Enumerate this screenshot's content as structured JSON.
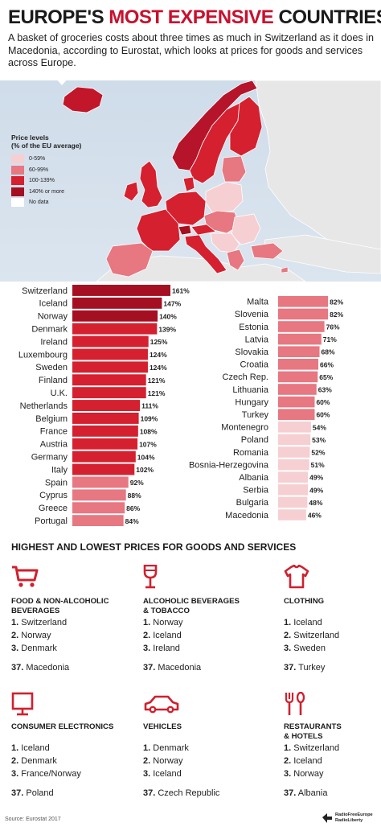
{
  "header": {
    "title_prefix": "EUROPE'S",
    "title_accent": "MOST EXPENSIVE",
    "title_suffix": "COUNTRIES",
    "subtitle": "A basket of groceries costs about three times as much in Switzerland as it does in Macedonia, according to Eurostat, which looks at prices for goods and services across Europe."
  },
  "legend": {
    "title_line1": "Price levels",
    "title_line2": "(% of the EU average)",
    "items": [
      {
        "label": "0-59%",
        "color": "#f6cfd2"
      },
      {
        "label": "60-99%",
        "color": "#e77781"
      },
      {
        "label": "100-139%",
        "color": "#d5202f"
      },
      {
        "label": "140% or more",
        "color": "#a50f22"
      },
      {
        "label": "No data",
        "color": "#ffffff"
      }
    ]
  },
  "chart_data": {
    "type": "bar",
    "orientation": "horizontal",
    "unit": "%",
    "series": [
      {
        "categories": [
          "Switzerland",
          "Iceland",
          "Norway",
          "Denmark",
          "Ireland",
          "Luxembourg",
          "Sweden",
          "Finland",
          "U.K.",
          "Netherlands",
          "Belgium",
          "France",
          "Austria",
          "Germany",
          "Italy",
          "Spain",
          "Cyprus",
          "Greece",
          "Portugal"
        ],
        "values": [
          161,
          147,
          140,
          139,
          125,
          124,
          124,
          121,
          121,
          111,
          109,
          108,
          107,
          104,
          102,
          92,
          88,
          86,
          84
        ]
      },
      {
        "categories": [
          "Malta",
          "Slovenia",
          "Estonia",
          "Latvia",
          "Slovakia",
          "Croatia",
          "Czech Rep.",
          "Lithuania",
          "Hungary",
          "Turkey",
          "Montenegro",
          "Poland",
          "Romania",
          "Bosnia-Herzegovina",
          "Albania",
          "Serbia",
          "Bulgaria",
          "Macedonia"
        ],
        "values": [
          82,
          82,
          76,
          71,
          68,
          66,
          65,
          63,
          60,
          60,
          54,
          53,
          52,
          51,
          49,
          49,
          48,
          46
        ]
      }
    ]
  },
  "section_title": "HIGHEST AND LOWEST PRICES FOR GOODS AND SERVICES",
  "categories": [
    {
      "icon": "shopping-cart-icon",
      "title_line1": "FOOD & NON-ALCOHOLIC",
      "title_line2": "BEVERAGES",
      "ranks": [
        {
          "n": "1.",
          "c": "Switzerland"
        },
        {
          "n": "2.",
          "c": "Norway"
        },
        {
          "n": "3.",
          "c": "Denmark"
        }
      ],
      "last": {
        "n": "37.",
        "c": "Macedonia"
      }
    },
    {
      "icon": "wine-glass-icon",
      "title_line1": "ALCOHOLIC BEVERAGES",
      "title_line2": "& TOBACCO",
      "ranks": [
        {
          "n": "1.",
          "c": "Norway"
        },
        {
          "n": "2.",
          "c": "Iceland"
        },
        {
          "n": "3.",
          "c": "Ireland"
        }
      ],
      "last": {
        "n": "37.",
        "c": "Macedonia"
      }
    },
    {
      "icon": "shirt-icon",
      "title_line1": "CLOTHING",
      "title_line2": "",
      "ranks": [
        {
          "n": "1.",
          "c": "Iceland"
        },
        {
          "n": "2.",
          "c": "Switzerland"
        },
        {
          "n": "3.",
          "c": "Sweden"
        }
      ],
      "last": {
        "n": "37.",
        "c": "Turkey"
      }
    },
    {
      "icon": "monitor-icon",
      "title_line1": "CONSUMER ELECTRONICS",
      "title_line2": "",
      "ranks": [
        {
          "n": "1.",
          "c": "Iceland"
        },
        {
          "n": "2.",
          "c": "Denmark"
        },
        {
          "n": "3.",
          "c": "France/Norway"
        }
      ],
      "last": {
        "n": "37.",
        "c": "Poland"
      }
    },
    {
      "icon": "car-icon",
      "title_line1": "VEHICLES",
      "title_line2": "",
      "ranks": [
        {
          "n": "1.",
          "c": "Denmark"
        },
        {
          "n": "2.",
          "c": "Norway"
        },
        {
          "n": "3.",
          "c": "Iceland"
        }
      ],
      "last": {
        "n": "37.",
        "c": "Czech Republic"
      }
    },
    {
      "icon": "fork-spoon-icon",
      "title_line1": "RESTAURANTS",
      "title_line2": "& HOTELS",
      "ranks": [
        {
          "n": "1.",
          "c": "Switzerland"
        },
        {
          "n": "2.",
          "c": "Iceland"
        },
        {
          "n": "3.",
          "c": "Norway"
        }
      ],
      "last": {
        "n": "37.",
        "c": "Albania"
      }
    }
  ],
  "footer": {
    "source": "Source: Eurostat 2017",
    "brand_line1": "RadioFreeEurope",
    "brand_line2": "RadioLiberty"
  },
  "colors": {
    "accent": "#c8102e",
    "icon_red": "#d0202e",
    "sea": "#d4e0ec"
  }
}
